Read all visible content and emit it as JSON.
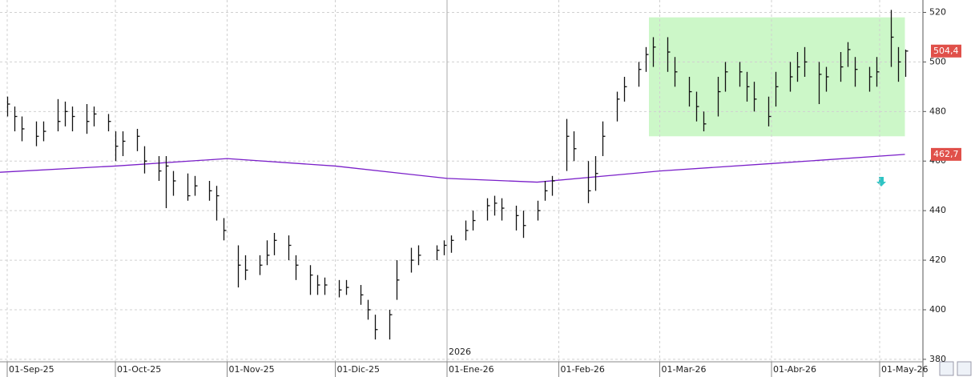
{
  "chart_data": {
    "type": "ohlc",
    "x": [
      "2025-09-01",
      "2025-09-03",
      "2025-09-05",
      "2025-09-09",
      "2025-09-11",
      "2025-09-15",
      "2025-09-17",
      "2025-09-19",
      "2025-09-23",
      "2025-09-25",
      "2025-09-29",
      "2025-10-01",
      "2025-10-03",
      "2025-10-07",
      "2025-10-09",
      "2025-10-13",
      "2025-10-15",
      "2025-10-17",
      "2025-10-21",
      "2025-10-23",
      "2025-10-27",
      "2025-10-29",
      "2025-10-31",
      "2025-11-04",
      "2025-11-06",
      "2025-11-10",
      "2025-11-12",
      "2025-11-14",
      "2025-11-18",
      "2025-11-20",
      "2025-11-24",
      "2025-11-26",
      "2025-11-28",
      "2025-12-02",
      "2025-12-04",
      "2025-12-08",
      "2025-12-10",
      "2025-12-12",
      "2025-12-16",
      "2025-12-18",
      "2025-12-22",
      "2025-12-24",
      "2025-12-29",
      "2025-12-31",
      "2026-01-02",
      "2026-01-06",
      "2026-01-08",
      "2026-01-12",
      "2026-01-14",
      "2026-01-16",
      "2026-01-20",
      "2026-01-22",
      "2026-01-26",
      "2026-01-28",
      "2026-01-30",
      "2026-02-03",
      "2026-02-05",
      "2026-02-09",
      "2026-02-11",
      "2026-02-13",
      "2026-02-17",
      "2026-02-19",
      "2026-02-23",
      "2026-02-25",
      "2026-02-27",
      "2026-03-03",
      "2026-03-05",
      "2026-03-09",
      "2026-03-11",
      "2026-03-13",
      "2026-03-17",
      "2026-03-19",
      "2026-03-23",
      "2026-03-25",
      "2026-03-27",
      "2026-03-31",
      "2026-04-02",
      "2026-04-06",
      "2026-04-08",
      "2026-04-10",
      "2026-04-14",
      "2026-04-16",
      "2026-04-20",
      "2026-04-22",
      "2026-04-24",
      "2026-04-28",
      "2026-04-30",
      "2026-05-04",
      "2026-05-06",
      "2026-05-08"
    ],
    "high": [
      486,
      482,
      478,
      476,
      476,
      485,
      484,
      482,
      483,
      482,
      479,
      472,
      472,
      473,
      466,
      462,
      462,
      456,
      455,
      454,
      452,
      450,
      437,
      426,
      422,
      422,
      428,
      431,
      430,
      422,
      418,
      414,
      413,
      412,
      412,
      410,
      404,
      398,
      400,
      420,
      425,
      426,
      426,
      428,
      430,
      436,
      440,
      445,
      446,
      445,
      442,
      440,
      444,
      452,
      454,
      477,
      472,
      460,
      462,
      476,
      488,
      494,
      500,
      506,
      510,
      510,
      502,
      494,
      488,
      480,
      494,
      500,
      500,
      496,
      492,
      486,
      496,
      500,
      504,
      506,
      500,
      498,
      504,
      508,
      502,
      498,
      502,
      521,
      506,
      505
    ],
    "low": [
      478,
      472,
      468,
      466,
      468,
      472,
      474,
      472,
      471,
      474,
      472,
      460,
      462,
      464,
      455,
      452,
      441,
      446,
      444,
      446,
      444,
      436,
      428,
      409,
      412,
      414,
      418,
      422,
      420,
      412,
      406,
      406,
      406,
      405,
      406,
      402,
      396,
      388,
      388,
      404,
      415,
      418,
      420,
      422,
      423,
      428,
      432,
      436,
      438,
      436,
      432,
      429,
      436,
      444,
      446,
      456,
      460,
      443,
      448,
      462,
      476,
      484,
      490,
      496,
      498,
      496,
      490,
      482,
      476,
      472,
      478,
      488,
      490,
      484,
      480,
      474,
      482,
      488,
      492,
      494,
      483,
      488,
      492,
      498,
      490,
      488,
      490,
      498,
      492,
      494
    ],
    "close": [
      483,
      478,
      473,
      470,
      472,
      476,
      480,
      478,
      476,
      479,
      476,
      466,
      468,
      470,
      460,
      456,
      458,
      452,
      446,
      450,
      448,
      446,
      432,
      418,
      416,
      418,
      422,
      428,
      426,
      418,
      414,
      410,
      410,
      408,
      409,
      406,
      400,
      392,
      398,
      412,
      420,
      422,
      424,
      426,
      428,
      432,
      436,
      442,
      443,
      441,
      438,
      434,
      440,
      448,
      452,
      470,
      465,
      448,
      455,
      470,
      485,
      490,
      497,
      503,
      506,
      504,
      496,
      488,
      482,
      475,
      488,
      496,
      496,
      490,
      485,
      478,
      490,
      494,
      498,
      500,
      495,
      494,
      498,
      505,
      497,
      494,
      496,
      510,
      500,
      504.4
    ],
    "color": "#111111",
    "moving_average": {
      "color": "#7a1fc9",
      "x": [
        "2025-08-30",
        "2025-10-01",
        "2025-11-01",
        "2025-12-01",
        "2026-01-01",
        "2026-01-26",
        "2026-03-01",
        "2026-04-01",
        "2026-05-08"
      ],
      "values": [
        455.5,
        458,
        461,
        458,
        453,
        451.5,
        456,
        459,
        462.7
      ]
    },
    "highlight": {
      "x": [
        "2026-02-26",
        "2026-05-08"
      ],
      "y": [
        470,
        518
      ],
      "color": "#ccf7c8"
    },
    "last_labels": [
      {
        "value": 504.4,
        "label": "504,4"
      },
      {
        "value": 462.7,
        "label": "462,7"
      }
    ],
    "year_marker": {
      "x": "2026-01-01",
      "label": "2026"
    },
    "xlim": [
      "2025-08-30",
      "2026-05-13"
    ],
    "xticks": [
      {
        "value": "2025-09-01",
        "label": "01-Sep-25"
      },
      {
        "value": "2025-10-01",
        "label": "01-Oct-25"
      },
      {
        "value": "2025-11-01",
        "label": "01-Nov-25"
      },
      {
        "value": "2025-12-01",
        "label": "01-Dic-25"
      },
      {
        "value": "2026-01-01",
        "label": "01-Ene-26"
      },
      {
        "value": "2026-02-01",
        "label": "01-Feb-26"
      },
      {
        "value": "2026-03-01",
        "label": "01-Mar-26"
      },
      {
        "value": "2026-04-01",
        "label": "01-Abr-26"
      },
      {
        "value": "2026-05-01",
        "label": "01-May-26"
      }
    ],
    "ylim": [
      379,
      525
    ],
    "yticks": [
      380,
      400,
      420,
      440,
      460,
      480,
      500,
      520
    ],
    "grid": true
  }
}
